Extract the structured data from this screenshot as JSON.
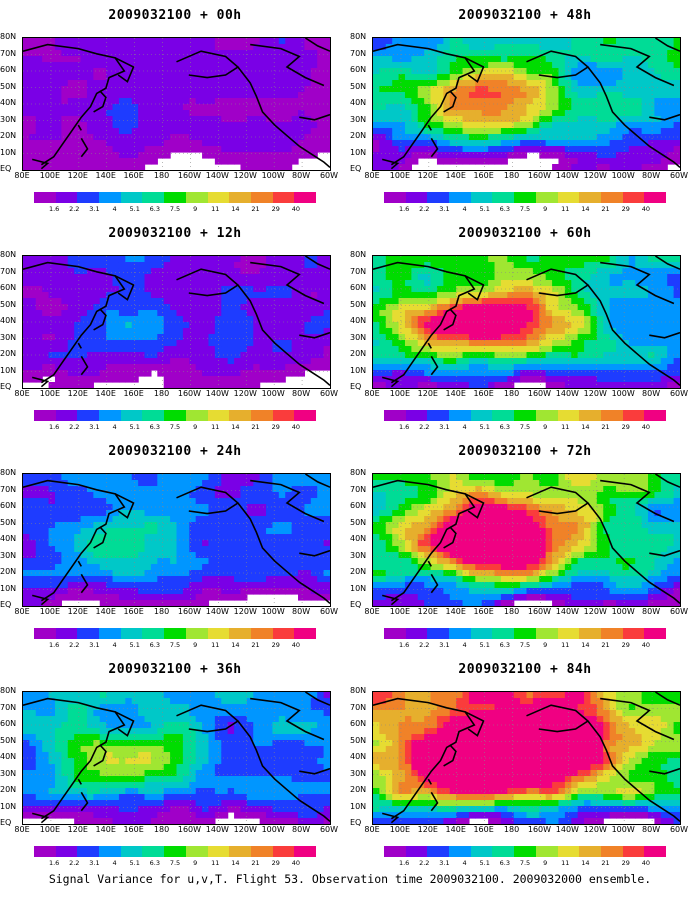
{
  "panels": [
    {
      "title": "2009032100 + 00h",
      "level": 0.05
    },
    {
      "title": "2009032100 + 48h",
      "level": 0.55
    },
    {
      "title": "2009032100 + 12h",
      "level": 0.18
    },
    {
      "title": "2009032100 + 60h",
      "level": 0.65
    },
    {
      "title": "2009032100 + 24h",
      "level": 0.3
    },
    {
      "title": "2009032100 + 72h",
      "level": 0.75
    },
    {
      "title": "2009032100 + 36h",
      "level": 0.42
    },
    {
      "title": "2009032100 + 84h",
      "level": 0.88
    }
  ],
  "y_labels": [
    "80N",
    "70N",
    "60N",
    "50N",
    "40N",
    "30N",
    "20N",
    "10N",
    "EQ"
  ],
  "x_labels": [
    "80E",
    "100E",
    "120E",
    "140E",
    "160E",
    "180",
    "160W",
    "140W",
    "120W",
    "100W",
    "80W",
    "60W"
  ],
  "colorbar": {
    "labels": [
      "1.6",
      "2.2",
      "3.1",
      "4",
      "5.1",
      "6.3",
      "7.5",
      "9",
      "11",
      "14",
      "21",
      "29",
      "40"
    ],
    "colors": [
      "#a000c8",
      "#7a00e6",
      "#1e3cff",
      "#0096ff",
      "#00c8c8",
      "#00dc96",
      "#00dc00",
      "#a0e632",
      "#e6dc32",
      "#e6af2d",
      "#f08228",
      "#fa3c3c",
      "#f00082"
    ]
  },
  "footer": "Signal Variance for u,v,T. Flight 53. Observation time 2009032100. 2009032000 ensemble."
}
